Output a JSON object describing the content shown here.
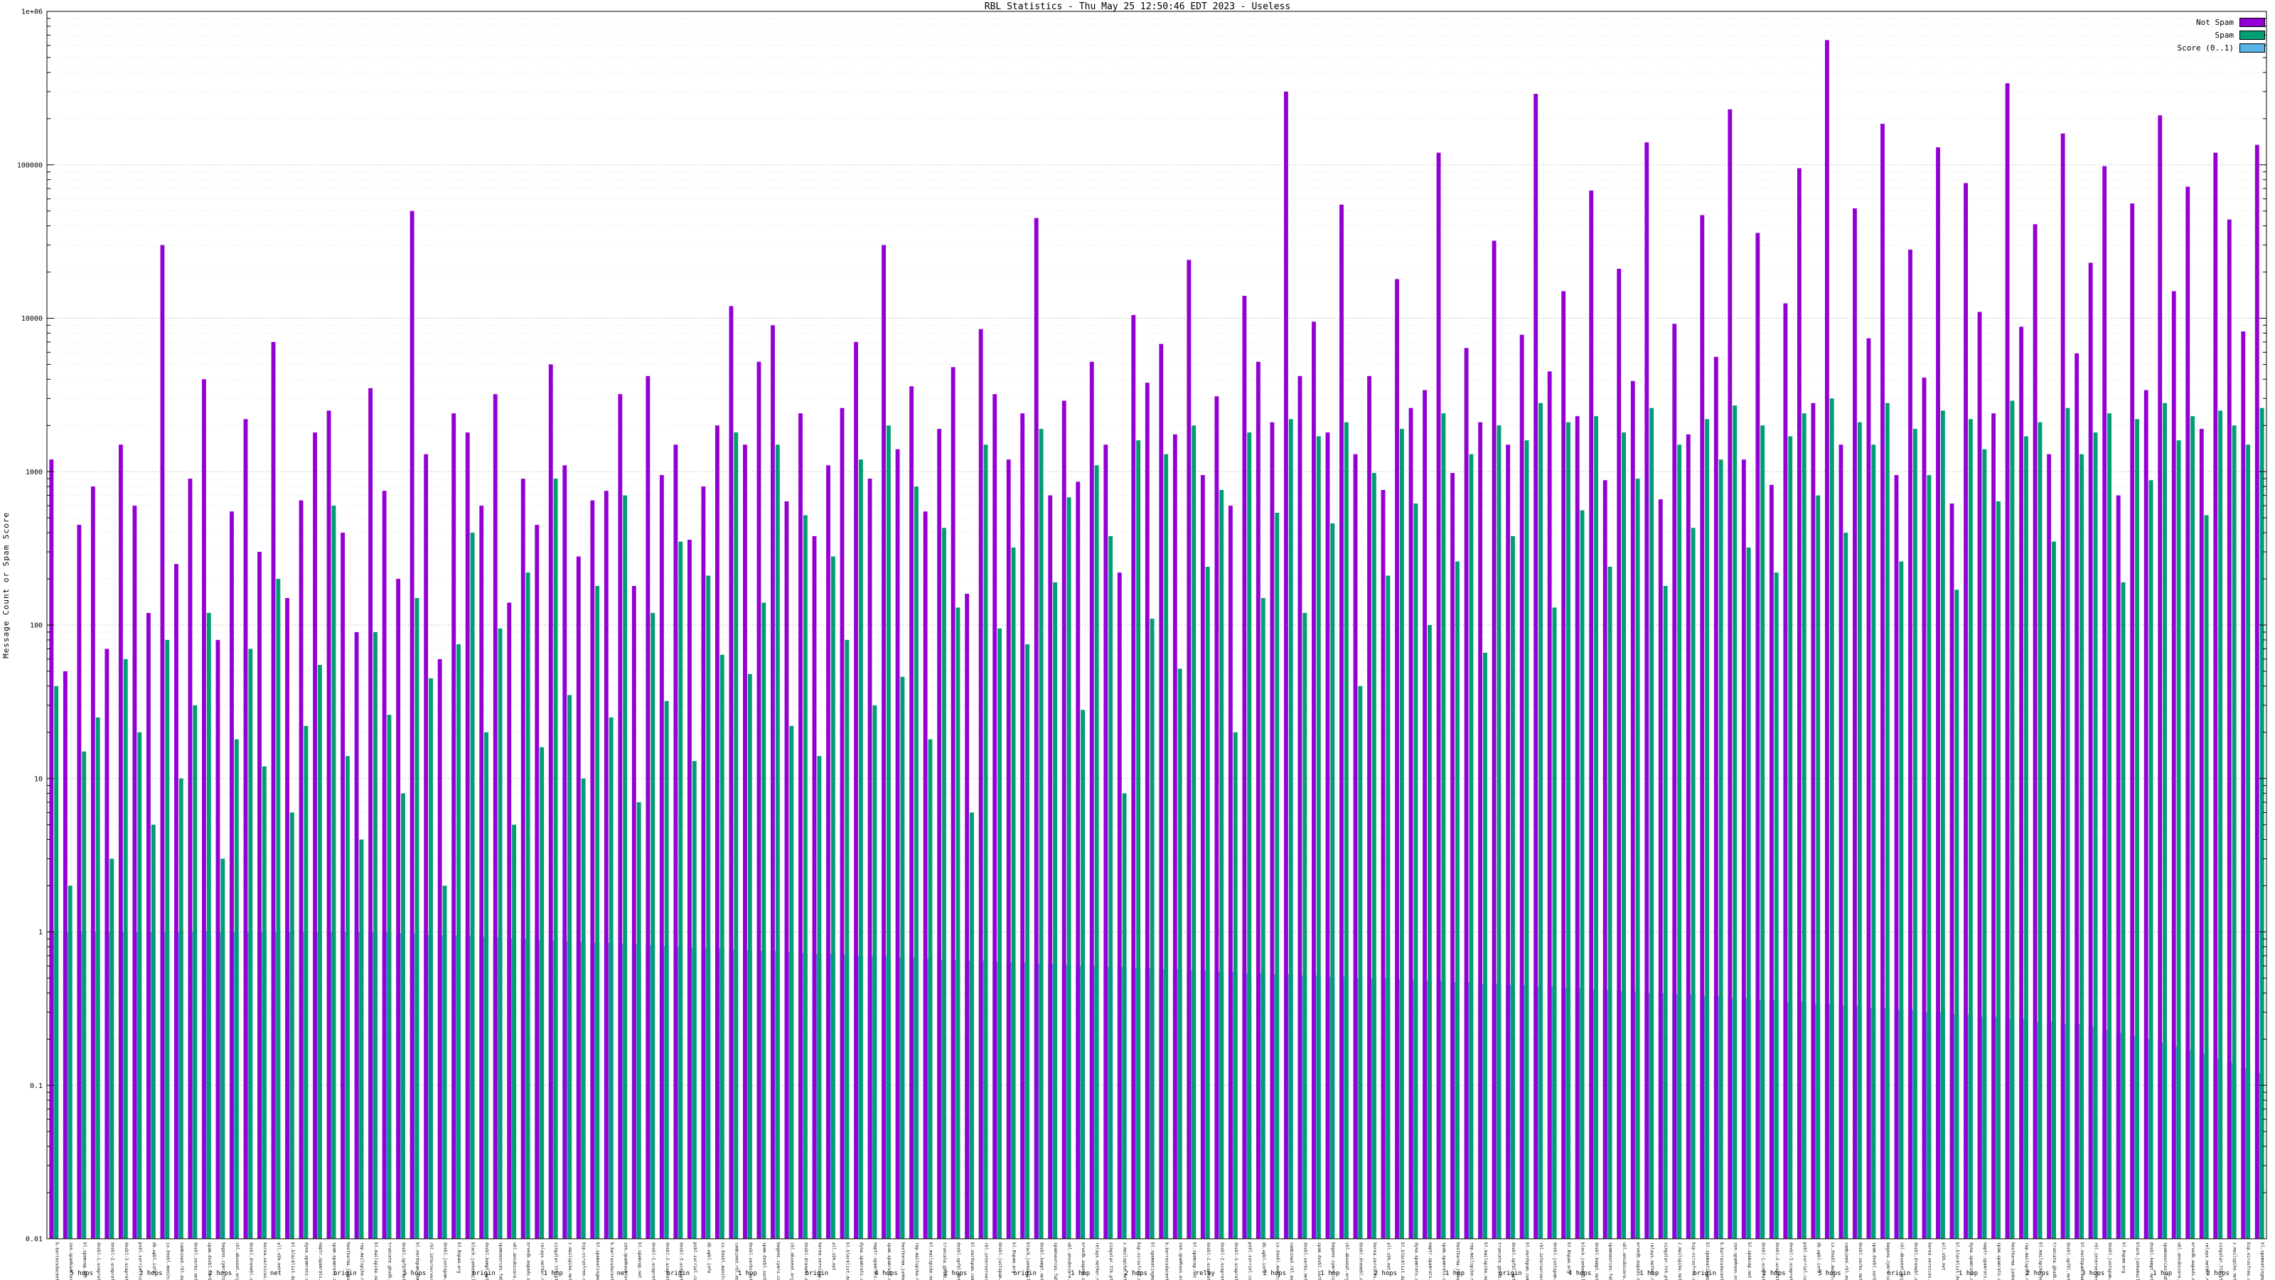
{
  "title": "RBL Statistics - Thu May 25 12:50:46 EDT 2023 - Useless",
  "ylabel": "Message Count or Spam Score",
  "y_ticks": [
    "1e+06",
    "100000",
    "10000",
    "1000",
    "100",
    "10",
    "1",
    "0.1",
    "0.01"
  ],
  "legend": [
    {
      "label": "Not Spam",
      "color": "#9400d3"
    },
    {
      "label": "Spam",
      "color": "#009e73"
    },
    {
      "label": "Score (0..1)",
      "color": "#56b4e9"
    }
  ],
  "x_annotations": [
    {
      "i": 2,
      "t": "5 hops"
    },
    {
      "i": 7,
      "t": "2 hops"
    },
    {
      "i": 12,
      "t": "2 hops"
    },
    {
      "i": 16,
      "t": "net"
    },
    {
      "i": 21,
      "t": "origin"
    },
    {
      "i": 26,
      "t": "5 hops"
    },
    {
      "i": 31,
      "t": "origin"
    },
    {
      "i": 36,
      "t": "1 hop"
    },
    {
      "i": 41,
      "t": "net"
    },
    {
      "i": 45,
      "t": "origin"
    },
    {
      "i": 50,
      "t": "1 hop"
    },
    {
      "i": 55,
      "t": "origin"
    },
    {
      "i": 60,
      "t": "4 hops"
    },
    {
      "i": 65,
      "t": "2 hops"
    },
    {
      "i": 70,
      "t": "origin"
    },
    {
      "i": 74,
      "t": "1 hop"
    },
    {
      "i": 78,
      "t": "2 hops"
    },
    {
      "i": 83,
      "t": "relay"
    },
    {
      "i": 88,
      "t": "2 hops"
    },
    {
      "i": 92,
      "t": "1 hop"
    },
    {
      "i": 96,
      "t": "2 hops"
    },
    {
      "i": 101,
      "t": "1 hop"
    },
    {
      "i": 105,
      "t": "origin"
    },
    {
      "i": 110,
      "t": "4 hops"
    },
    {
      "i": 115,
      "t": "1 hop"
    },
    {
      "i": 119,
      "t": "origin"
    },
    {
      "i": 124,
      "t": "2 hops"
    },
    {
      "i": 128,
      "t": "3 hops"
    },
    {
      "i": 133,
      "t": "origin"
    },
    {
      "i": 138,
      "t": "1 hop"
    },
    {
      "i": 143,
      "t": "2 hops"
    },
    {
      "i": 147,
      "t": "3 hops"
    },
    {
      "i": 152,
      "t": "1 hop"
    },
    {
      "i": 156,
      "t": "2 hops"
    }
  ],
  "chart_data": {
    "type": "bar",
    "title": "RBL Statistics - Thu May 25 12:50:46 EDT 2023 - Useless",
    "xlabel": "",
    "ylabel": "Message Count or Spam Score",
    "yscale": "log",
    "ylim": [
      0.01,
      1000000
    ],
    "grid": true,
    "legend_position": "top-right",
    "categories": [
      "b.barracudacentral.org",
      "zen.spamhaus.org",
      "bl.spamcop.net",
      "dnsbl-1.uceprotect.net",
      "dnsbl-2.uceprotect.net",
      "dnsbl-3.uceprotect.net",
      "psbl.surriel.com",
      "db.wpbl.info",
      "ix.dnsbl.manitu.net",
      "combined.rbl.msrbl.net",
      "dnsbl.sorbs.net",
      "spam.dnsbl.sorbs.net",
      "bogons.cymru.com",
      "cbl.abuseat.org",
      "dnsbl.dronebl.org",
      "korea.services.net",
      "all.s5h.net",
      "bl.blocklist.de",
      "dyna.spamrats.com",
      "noptr.spamrats.com",
      "spam.spamrats.com",
      "hostkarma.junkemailfilter.com",
      "rep.mailspike.net",
      "bl.mailspike.net",
      "truncate.gbudb.net",
      "dnsbl.spfbl.net",
      "bl.nordspam.com",
      "rbl.interserver.net",
      "dnsbl.justspam.org",
      "bl.0spam.org",
      "black.junkemailfilter.com",
      "dnsbl.kempt.net",
      "spamsources.fabel.dk",
      "ubl.unsubscore.com",
      "orvedb.aupads.org",
      "relays.nether.net",
      "singular.ttk.pte.hu",
      "z.mailspike.net",
      "bip.virusfree.cz",
      "bl.spameatingmonkey.net",
      "b.barracudacentral.org",
      "zen.spamhaus.org",
      "bl.spamcop.net",
      "dnsbl-1.uceprotect.net",
      "dnsbl-2.uceprotect.net",
      "dnsbl-3.uceprotect.net",
      "psbl.surriel.com",
      "db.wpbl.info",
      "ix.dnsbl.manitu.net",
      "combined.rbl.msrbl.net",
      "dnsbl.sorbs.net",
      "spam.dnsbl.sorbs.net",
      "bogons.cymru.com",
      "cbl.abuseat.org",
      "dnsbl.dronebl.org",
      "korea.services.net",
      "all.s5h.net",
      "bl.blocklist.de",
      "dyna.spamrats.com",
      "noptr.spamrats.com",
      "spam.spamrats.com",
      "hostkarma.junkemailfilter.com",
      "rep.mailspike.net",
      "bl.mailspike.net",
      "truncate.gbudb.net",
      "dnsbl.spfbl.net",
      "bl.nordspam.com",
      "rbl.interserver.net",
      "dnsbl.justspam.org",
      "bl.0spam.org",
      "black.junkemailfilter.com",
      "dnsbl.kempt.net",
      "spamsources.fabel.dk",
      "ubl.unsubscore.com",
      "orvedb.aupads.org",
      "relays.nether.net",
      "singular.ttk.pte.hu",
      "z.mailspike.net",
      "bip.virusfree.cz",
      "bl.spameatingmonkey.net",
      "b.barracudacentral.org",
      "zen.spamhaus.org",
      "bl.spamcop.net",
      "dnsbl-1.uceprotect.net",
      "dnsbl-2.uceprotect.net",
      "dnsbl-3.uceprotect.net",
      "psbl.surriel.com",
      "db.wpbl.info",
      "ix.dnsbl.manitu.net",
      "combined.rbl.msrbl.net",
      "dnsbl.sorbs.net",
      "spam.dnsbl.sorbs.net",
      "bogons.cymru.com",
      "cbl.abuseat.org",
      "dnsbl.dronebl.org",
      "korea.services.net",
      "all.s5h.net",
      "bl.blocklist.de",
      "dyna.spamrats.com",
      "noptr.spamrats.com",
      "spam.spamrats.com",
      "hostkarma.junkemailfilter.com",
      "rep.mailspike.net",
      "bl.mailspike.net",
      "truncate.gbudb.net",
      "dnsbl.spfbl.net",
      "bl.nordspam.com",
      "rbl.interserver.net",
      "dnsbl.justspam.org",
      "bl.0spam.org",
      "black.junkemailfilter.com",
      "dnsbl.kempt.net",
      "spamsources.fabel.dk",
      "ubl.unsubscore.com",
      "orvedb.aupads.org",
      "relays.nether.net",
      "singular.ttk.pte.hu",
      "z.mailspike.net",
      "bip.virusfree.cz",
      "bl.spameatingmonkey.net",
      "b.barracudacentral.org",
      "zen.spamhaus.org",
      "bl.spamcop.net",
      "dnsbl-1.uceprotect.net",
      "dnsbl-2.uceprotect.net",
      "dnsbl-3.uceprotect.net",
      "psbl.surriel.com",
      "db.wpbl.info",
      "ix.dnsbl.manitu.net",
      "combined.rbl.msrbl.net",
      "dnsbl.sorbs.net",
      "spam.dnsbl.sorbs.net",
      "bogons.cymru.com",
      "cbl.abuseat.org",
      "dnsbl.dronebl.org",
      "korea.services.net",
      "all.s5h.net",
      "bl.blocklist.de",
      "dyna.spamrats.com",
      "noptr.spamrats.com",
      "spam.spamrats.com",
      "hostkarma.junkemailfilter.com",
      "rep.mailspike.net",
      "bl.mailspike.net",
      "truncate.gbudb.net",
      "dnsbl.spfbl.net",
      "bl.nordspam.com",
      "rbl.interserver.net",
      "dnsbl.justspam.org",
      "bl.0spam.org",
      "black.junkemailfilter.com",
      "dnsbl.kempt.net",
      "spamsources.fabel.dk",
      "ubl.unsubscore.com",
      "orvedb.aupads.org",
      "relays.nether.net",
      "singular.ttk.pte.hu",
      "z.mailspike.net",
      "bip.virusfree.cz",
      "bl.spameatingmonkey.net"
    ],
    "series": [
      {
        "name": "Not Spam",
        "color": "#9400d3",
        "values": [
          1200,
          50,
          450,
          800,
          70,
          1500,
          600,
          120,
          30000,
          250,
          900,
          4000,
          80,
          550,
          2200,
          300,
          7000,
          150,
          650,
          1800,
          2500,
          400,
          90,
          3500,
          750,
          200,
          50000,
          1300,
          60,
          2400,
          1800,
          600,
          3200,
          140,
          900,
          450,
          5000,
          1100,
          280,
          650,
          750,
          3200,
          180,
          4200,
          950,
          1500,
          360,
          800,
          2000,
          12000,
          1500,
          5200,
          9000,
          640,
          2400,
          380,
          1100,
          2600,
          7000,
          900,
          30000,
          1400,
          3600,
          550,
          1900,
          4800,
          160,
          8500,
          3200,
          1200,
          2400,
          45000,
          700,
          2900,
          860,
          5200,
          1500,
          220,
          10500,
          3800,
          6800,
          1750,
          24000,
          950,
          3100,
          600,
          14000,
          5200,
          2100,
          300000,
          4200,
          9500,
          1800,
          55000,
          1300,
          4200,
          760,
          18000,
          2600,
          3400,
          120000,
          980,
          6400,
          2100,
          32000,
          1500,
          7800,
          290000,
          4500,
          15000,
          2300,
          68000,
          880,
          21000,
          3900,
          140000,
          660,
          9200,
          1750,
          47000,
          5600,
          230000,
          1200,
          36000,
          820,
          12500,
          95000,
          2800,
          650000,
          1500,
          52000,
          7400,
          185000,
          950,
          28000,
          4100,
          130000,
          620,
          76000,
          11000,
          2400,
          340000,
          8800,
          41000,
          1300,
          160000,
          5900,
          23000,
          98000,
          700,
          56000,
          3400,
          210000,
          15000,
          72000,
          1900,
          120000,
          44000,
          8200,
          135000
        ]
      },
      {
        "name": "Spam",
        "color": "#009e73",
        "values": [
          40,
          2,
          15,
          25,
          3,
          60,
          20,
          5,
          80,
          10,
          30,
          120,
          3,
          18,
          70,
          12,
          200,
          6,
          22,
          55,
          600,
          14,
          4,
          90,
          26,
          8,
          150,
          45,
          2,
          75,
          400,
          20,
          95,
          5,
          220,
          16,
          900,
          35,
          10,
          180,
          25,
          700,
          7,
          120,
          32,
          350,
          13,
          210,
          64,
          1800,
          48,
          140,
          1500,
          22,
          520,
          14,
          280,
          80,
          1200,
          30,
          2000,
          46,
          800,
          18,
          430,
          130,
          6,
          1500,
          95,
          320,
          75,
          1900,
          190,
          680,
          28,
          1100,
          380,
          8,
          1600,
          110,
          1300,
          52,
          2000,
          240,
          760,
          20,
          1800,
          150,
          540,
          2200,
          120,
          1700,
          460,
          2100,
          40,
          980,
          210,
          1900,
          620,
          100,
          2400,
          260,
          1300,
          66,
          2000,
          380,
          1600,
          2800,
          130,
          2100,
          560,
          2300,
          240,
          1800,
          900,
          2600,
          180,
          1500,
          430,
          2200,
          1200,
          2700,
          320,
          2000,
          220,
          1700,
          2400,
          700,
          3000,
          400,
          2100,
          1500,
          2800,
          260,
          1900,
          950,
          2500,
          170,
          2200,
          1400,
          640,
          2900,
          1700,
          2100,
          350,
          2600,
          1300,
          1800,
          2400,
          190,
          2200,
          880,
          2800,
          1600,
          2300,
          520,
          2500,
          2000,
          1500,
          2600
        ]
      },
      {
        "name": "Score (0..1)",
        "color": "#56b4e9",
        "values": [
          1,
          1,
          1,
          1,
          1,
          1,
          1,
          1,
          1,
          1,
          1,
          1,
          1,
          1,
          1,
          1,
          1,
          1,
          1,
          1,
          1,
          1,
          1,
          1,
          1,
          0.98,
          0.97,
          0.96,
          0.95,
          0.95,
          0.94,
          0.93,
          0.92,
          0.91,
          0.9,
          0.89,
          0.88,
          0.87,
          0.86,
          0.85,
          0.85,
          0.84,
          0.83,
          0.82,
          0.81,
          0.8,
          0.79,
          0.78,
          0.78,
          0.77,
          0.76,
          0.75,
          0.75,
          0.74,
          0.73,
          0.72,
          0.72,
          0.71,
          0.7,
          0.7,
          0.69,
          0.68,
          0.68,
          0.67,
          0.66,
          0.66,
          0.65,
          0.65,
          0.64,
          0.63,
          0.63,
          0.62,
          0.62,
          0.61,
          0.6,
          0.6,
          0.59,
          0.59,
          0.58,
          0.58,
          0.57,
          0.57,
          0.56,
          0.56,
          0.55,
          0.55,
          0.54,
          0.54,
          0.53,
          0.53,
          0.52,
          0.52,
          0.51,
          0.51,
          0.5,
          0.5,
          0.5,
          0.49,
          0.49,
          0.48,
          0.48,
          0.47,
          0.47,
          0.46,
          0.46,
          0.45,
          0.45,
          0.44,
          0.44,
          0.43,
          0.43,
          0.42,
          0.42,
          0.41,
          0.41,
          0.4,
          0.4,
          0.39,
          0.39,
          0.38,
          0.38,
          0.37,
          0.37,
          0.36,
          0.36,
          0.35,
          0.35,
          0.34,
          0.34,
          0.33,
          0.33,
          0.32,
          0.32,
          0.31,
          0.31,
          0.3,
          0.3,
          0.29,
          0.29,
          0.28,
          0.28,
          0.27,
          0.27,
          0.26,
          0.26,
          0.25,
          0.25,
          0.24,
          0.23,
          0.22,
          0.21,
          0.2,
          0.19,
          0.18,
          0.17,
          0.16,
          0.15,
          0.14,
          0.13,
          0.12
        ]
      }
    ]
  }
}
